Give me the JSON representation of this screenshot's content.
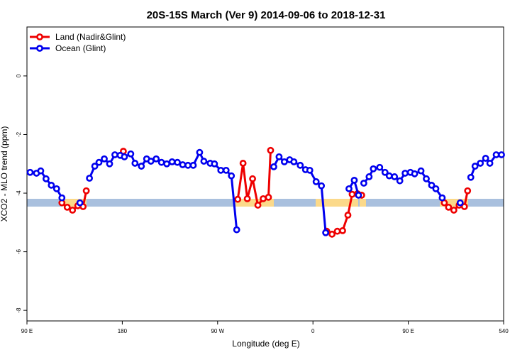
{
  "chart_data": {
    "type": "line",
    "title": "20S-15S March (Ver 9)   2014-09-06 to 2018-12-31",
    "x_label": "Longitude (deg E)",
    "y_label": "XCO2 - MLO trend (ppm)",
    "xlim": [
      90,
      540
    ],
    "xticks": [
      {
        "value": 90,
        "label": "90 E"
      },
      180,
      {
        "value": 270,
        "label": "90 W"
      },
      {
        "value": 360,
        "label": "0"
      },
      {
        "value": 450,
        "label": "90 E"
      },
      540
    ],
    "ylim": [
      -8.36,
      1.67
    ],
    "yticks": [
      0,
      -2,
      -4,
      -6,
      -8
    ],
    "legend": "top-left",
    "series": [
      {
        "name": "Land (Nadir&Glint)",
        "color": "#ee0000",
        "x": [
          123,
          128,
          133,
          138,
          143,
          146,
          null,
          181,
          null,
          289,
          294,
          298,
          303,
          308,
          313,
          318,
          320,
          null,
          373,
          378,
          383,
          388,
          393,
          397,
          402,
          406,
          null,
          484,
          488,
          493,
          498,
          503,
          506
        ],
        "values": [
          -4.33,
          -4.48,
          -4.58,
          -4.43,
          -4.46,
          -3.92,
          null,
          -2.57,
          null,
          -4.21,
          -2.98,
          -4.19,
          -3.51,
          -4.41,
          -4.19,
          -4.14,
          -2.54,
          null,
          -5.3,
          -5.4,
          -5.3,
          -5.28,
          -4.75,
          -4.04,
          -4.02,
          -4.07,
          null,
          -4.33,
          -4.48,
          -4.58,
          -4.41,
          -4.46,
          -3.92
        ]
      },
      {
        "name": "Ocean (Glint)",
        "color": "#0000ee",
        "x": [
          93,
          99,
          103,
          108,
          113,
          118,
          123,
          null,
          140,
          null,
          149,
          154,
          158,
          163,
          168,
          173,
          178,
          182,
          188,
          192,
          198,
          203,
          207,
          212,
          217,
          222,
          227,
          232,
          237,
          242,
          247,
          253,
          257,
          263,
          267,
          273,
          278,
          283,
          288,
          null,
          323,
          328,
          333,
          338,
          342,
          348,
          353,
          357,
          363,
          368,
          372,
          null,
          394,
          399,
          403,
          null,
          408,
          413,
          417,
          423,
          428,
          432,
          437,
          442,
          447,
          452,
          456,
          462,
          467,
          472,
          476,
          482,
          null,
          499,
          null,
          509,
          513,
          518,
          523,
          527,
          533,
          538
        ],
        "values": [
          -3.29,
          -3.32,
          -3.24,
          -3.51,
          -3.73,
          -3.85,
          -4.16,
          null,
          -4.33,
          null,
          -3.49,
          -3.08,
          -2.95,
          -2.83,
          -3.0,
          -2.69,
          -2.71,
          -2.76,
          -2.66,
          -2.98,
          -3.08,
          -2.83,
          -2.91,
          -2.83,
          -2.95,
          -3.0,
          -2.93,
          -2.95,
          -3.03,
          -3.05,
          -3.05,
          -2.61,
          -2.91,
          -2.98,
          -3.0,
          -3.22,
          -3.22,
          -3.41,
          -5.25,
          null,
          -3.1,
          -2.76,
          -2.93,
          -2.86,
          -2.93,
          -3.05,
          -3.2,
          -3.22,
          -3.61,
          -3.75,
          -5.35,
          null,
          -3.85,
          -3.56,
          -4.07,
          null,
          -3.66,
          -3.44,
          -3.17,
          -3.12,
          -3.29,
          -3.41,
          -3.44,
          -3.58,
          -3.32,
          -3.29,
          -3.34,
          -3.24,
          -3.51,
          -3.73,
          -3.85,
          -4.16,
          null,
          -4.33,
          null,
          -3.46,
          -3.08,
          -2.98,
          -2.81,
          -2.98,
          -2.69,
          -2.69
        ]
      }
    ]
  }
}
